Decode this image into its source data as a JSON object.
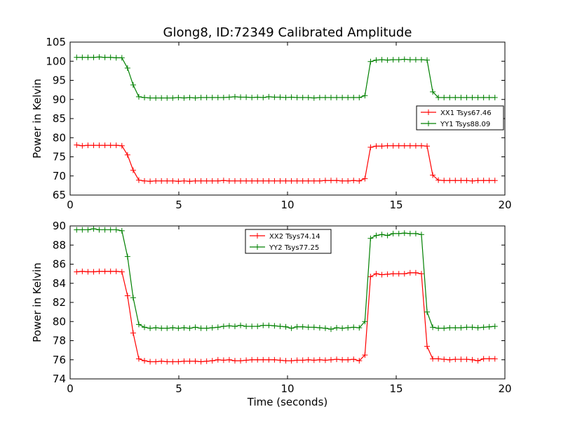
{
  "chart_data": {
    "title": "Glong8, ID:72349 Calibrated Amplitude",
    "xlabel": "Time (seconds)",
    "x": [
      0.3,
      0.56,
      0.82,
      1.08,
      1.34,
      1.6,
      1.86,
      2.12,
      2.38,
      2.64,
      2.9,
      3.16,
      3.42,
      3.68,
      3.94,
      4.2,
      4.46,
      4.72,
      4.98,
      5.24,
      5.5,
      5.76,
      6.02,
      6.28,
      6.54,
      6.8,
      7.06,
      7.32,
      7.58,
      7.84,
      8.1,
      8.36,
      8.62,
      8.88,
      9.14,
      9.4,
      9.66,
      9.92,
      10.18,
      10.44,
      10.7,
      10.96,
      11.22,
      11.48,
      11.74,
      12.0,
      12.26,
      12.52,
      12.78,
      13.04,
      13.3,
      13.56,
      13.82,
      14.08,
      14.34,
      14.6,
      14.86,
      15.12,
      15.38,
      15.64,
      15.9,
      16.16,
      16.42,
      16.68,
      16.94,
      17.2,
      17.46,
      17.72,
      17.98,
      18.24,
      18.5,
      18.76,
      19.02,
      19.28,
      19.54
    ],
    "charts": [
      {
        "type": "line",
        "ylabel": "Power in Kelvin",
        "xlim": [
          0,
          20
        ],
        "ylim": [
          65,
          105
        ],
        "xticks": [
          "0",
          "5",
          "10",
          "15",
          "20"
        ],
        "yticks": [
          "65",
          "70",
          "75",
          "80",
          "85",
          "90",
          "95",
          "100",
          "105"
        ],
        "legend_position": "center-right",
        "series": [
          {
            "name": "XX1 Tsys67.46",
            "color": "#ff0000",
            "values": [
              78.1,
              77.9,
              78.0,
              78.0,
              78.0,
              78.0,
              78.0,
              78.0,
              77.9,
              75.5,
              71.5,
              68.9,
              68.7,
              68.6,
              68.7,
              68.7,
              68.7,
              68.7,
              68.6,
              68.7,
              68.6,
              68.7,
              68.7,
              68.7,
              68.7,
              68.7,
              68.8,
              68.7,
              68.7,
              68.7,
              68.7,
              68.7,
              68.7,
              68.7,
              68.7,
              68.7,
              68.7,
              68.7,
              68.7,
              68.7,
              68.7,
              68.7,
              68.7,
              68.7,
              68.8,
              68.8,
              68.8,
              68.7,
              68.7,
              68.8,
              68.7,
              69.3,
              77.5,
              77.8,
              77.8,
              77.9,
              77.9,
              77.9,
              77.9,
              77.9,
              77.9,
              77.9,
              77.8,
              70.2,
              68.9,
              68.8,
              68.8,
              68.8,
              68.8,
              68.8,
              68.7,
              68.8,
              68.8,
              68.8,
              68.8
            ]
          },
          {
            "name": "YY1 Tsys88.09",
            "color": "#008000",
            "values": [
              101.0,
              101.0,
              101.0,
              101.0,
              101.1,
              101.0,
              101.0,
              100.9,
              100.9,
              98.2,
              93.8,
              90.7,
              90.5,
              90.4,
              90.4,
              90.4,
              90.4,
              90.4,
              90.5,
              90.4,
              90.5,
              90.4,
              90.5,
              90.5,
              90.5,
              90.5,
              90.5,
              90.6,
              90.7,
              90.6,
              90.6,
              90.5,
              90.6,
              90.5,
              90.7,
              90.6,
              90.6,
              90.5,
              90.6,
              90.5,
              90.5,
              90.5,
              90.4,
              90.5,
              90.5,
              90.5,
              90.5,
              90.5,
              90.5,
              90.5,
              90.5,
              91.0,
              99.9,
              100.3,
              100.4,
              100.3,
              100.4,
              100.4,
              100.5,
              100.4,
              100.4,
              100.4,
              100.3,
              92.0,
              90.5,
              90.5,
              90.5,
              90.5,
              90.5,
              90.5,
              90.5,
              90.5,
              90.5,
              90.5,
              90.5
            ]
          }
        ]
      },
      {
        "type": "line",
        "ylabel": "Power in Kelvin",
        "xlim": [
          0,
          20
        ],
        "ylim": [
          74,
          90
        ],
        "xticks": [
          "0",
          "5",
          "10",
          "15",
          "20"
        ],
        "yticks": [
          "74",
          "76",
          "78",
          "80",
          "82",
          "84",
          "86",
          "88",
          "90"
        ],
        "legend_position": "upper-center",
        "series": [
          {
            "name": "XX2 Tsys74.14",
            "color": "#ff0000",
            "values": [
              85.2,
              85.25,
              85.2,
              85.2,
              85.25,
              85.25,
              85.25,
              85.25,
              85.2,
              82.7,
              78.8,
              76.1,
              75.9,
              75.8,
              75.8,
              75.85,
              75.8,
              75.8,
              75.8,
              75.85,
              75.85,
              75.85,
              75.8,
              75.85,
              75.9,
              76.0,
              75.95,
              76.0,
              75.9,
              75.9,
              75.95,
              76.0,
              76.0,
              76.0,
              76.0,
              76.0,
              75.95,
              75.9,
              75.9,
              75.95,
              75.95,
              76.0,
              75.95,
              76.0,
              75.95,
              76.0,
              76.05,
              76.0,
              76.0,
              76.05,
              75.9,
              76.5,
              84.7,
              85.0,
              84.9,
              84.95,
              85.0,
              85.0,
              85.0,
              85.1,
              85.1,
              85.0,
              77.4,
              76.1,
              76.1,
              76.05,
              76.0,
              76.05,
              76.05,
              76.05,
              76.0,
              75.9,
              76.1,
              76.1,
              76.1
            ]
          },
          {
            "name": "YY2 Tsys77.25",
            "color": "#008000",
            "values": [
              89.6,
              89.6,
              89.6,
              89.7,
              89.6,
              89.6,
              89.6,
              89.6,
              89.5,
              86.8,
              82.5,
              79.7,
              79.4,
              79.3,
              79.35,
              79.3,
              79.3,
              79.35,
              79.3,
              79.35,
              79.3,
              79.4,
              79.3,
              79.3,
              79.35,
              79.4,
              79.5,
              79.55,
              79.5,
              79.6,
              79.5,
              79.5,
              79.5,
              79.6,
              79.6,
              79.55,
              79.5,
              79.45,
              79.3,
              79.45,
              79.45,
              79.4,
              79.4,
              79.35,
              79.3,
              79.2,
              79.35,
              79.3,
              79.35,
              79.4,
              79.35,
              80.0,
              88.7,
              89.0,
              89.1,
              89.0,
              89.2,
              89.2,
              89.25,
              89.2,
              89.2,
              89.1,
              81.0,
              79.4,
              79.3,
              79.3,
              79.35,
              79.35,
              79.35,
              79.4,
              79.4,
              79.35,
              79.4,
              79.45,
              79.5
            ]
          }
        ]
      }
    ]
  }
}
